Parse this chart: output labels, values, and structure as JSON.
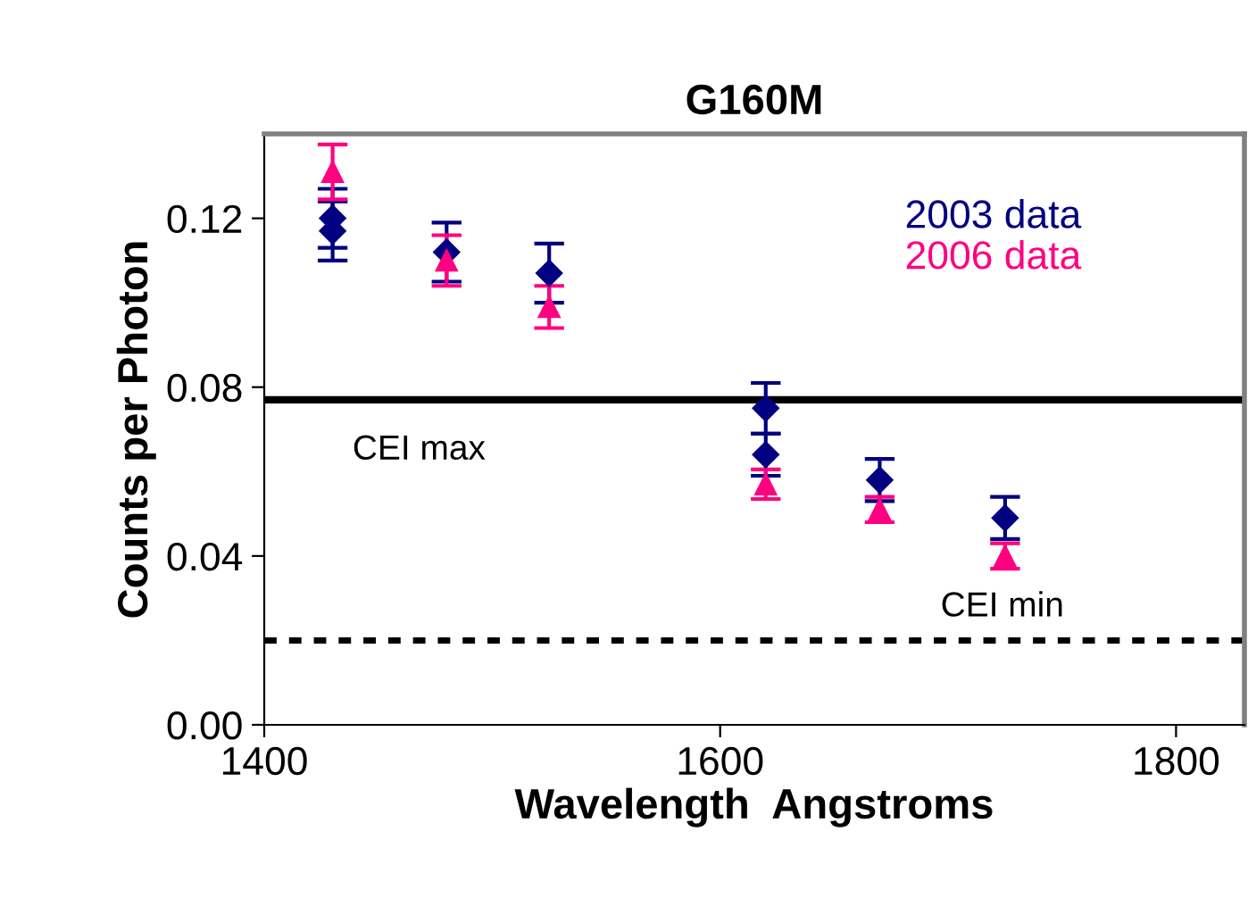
{
  "chart_data": {
    "type": "scatter",
    "title": "G160M",
    "xlabel": "Wavelength  Angstroms",
    "ylabel": "Counts per Photon",
    "xlim": [
      1400,
      1830
    ],
    "xticks": [
      1400,
      1600,
      1800
    ],
    "ylim": [
      0,
      0.14
    ],
    "yticks": [
      {
        "value": 0,
        "label": "0.00"
      },
      {
        "value": 0.04,
        "label": "0.04"
      },
      {
        "value": 0.08,
        "label": "0.08"
      },
      {
        "value": 0.12,
        "label": "0.12"
      }
    ],
    "grid": false,
    "legend": "top right",
    "series": [
      {
        "name": "2003 data",
        "color": "#000080",
        "marker": "diamond",
        "x": [
          1430,
          1430,
          1480,
          1525,
          1620,
          1620,
          1670,
          1725
        ],
        "values": [
          0.12,
          0.117,
          0.112,
          0.107,
          0.075,
          0.064,
          0.058,
          0.049
        ],
        "errors": [
          0.007,
          0.007,
          0.007,
          0.007,
          0.006,
          0.005,
          0.005,
          0.005
        ]
      },
      {
        "name": "2006 data",
        "color": "#ff0080",
        "marker": "triangle",
        "x": [
          1430,
          1480,
          1525,
          1620,
          1670,
          1725
        ],
        "values": [
          0.131,
          0.11,
          0.099,
          0.057,
          0.051,
          0.04
        ],
        "errors": [
          0.0065,
          0.006,
          0.005,
          0.0035,
          0.003,
          0.003
        ]
      }
    ],
    "ref_lines": [
      {
        "axis": "y",
        "value": 0.077,
        "label": "CEI max",
        "color": "#000000",
        "line_style": "solid"
      },
      {
        "axis": "y",
        "value": 0.02,
        "label": "CEI min",
        "color": "#000000",
        "line_style": "dotted"
      }
    ]
  }
}
